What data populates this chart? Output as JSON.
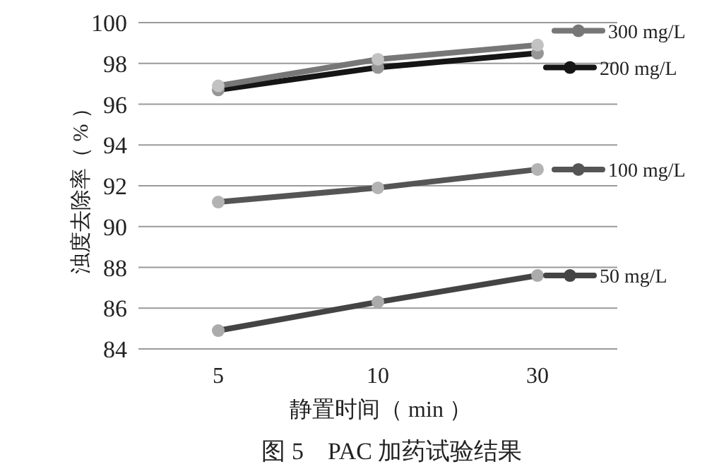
{
  "chart_data": {
    "type": "line",
    "title": "图 5　PAC 加药试验结果",
    "xlabel": "静置时间（ min ）",
    "ylabel": "浊度去除率（ % ）",
    "categories": [
      "5",
      "10",
      "30"
    ],
    "series": [
      {
        "name": "300 mg/L",
        "color": "#777777",
        "values": [
          96.9,
          98.2,
          98.9
        ]
      },
      {
        "name": "200 mg/L",
        "color": "#151515",
        "values": [
          96.7,
          97.8,
          98.5
        ]
      },
      {
        "name": "100 mg/L",
        "color": "#555555",
        "values": [
          91.2,
          91.9,
          92.8
        ]
      },
      {
        "name": "50 mg/L",
        "color": "#444444",
        "values": [
          84.9,
          86.3,
          87.6
        ]
      }
    ],
    "ylim": [
      84,
      100
    ],
    "yticks": [
      84,
      86,
      88,
      90,
      92,
      94,
      96,
      98,
      100
    ],
    "grid": "y",
    "legend": "right",
    "marker": "circle",
    "line_style": "solid"
  }
}
